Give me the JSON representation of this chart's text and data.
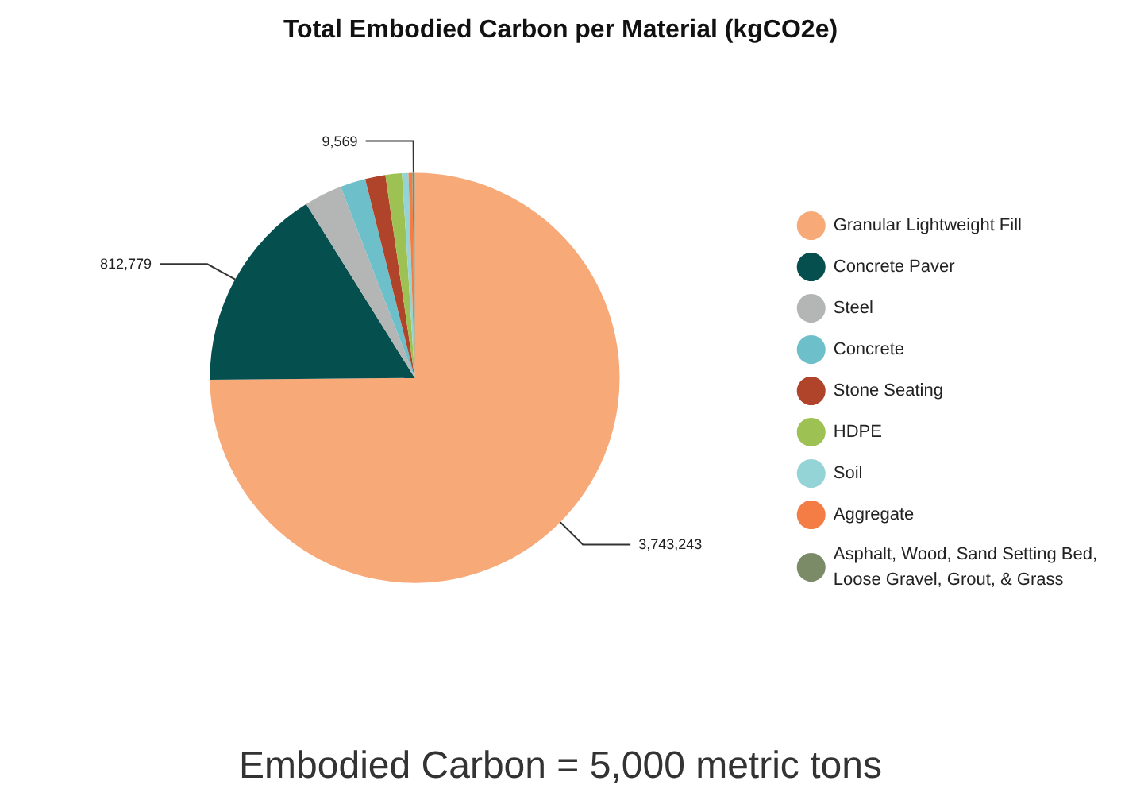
{
  "chart_data": {
    "type": "pie",
    "title": "Total Embodied Carbon per Material (kgCO2e)",
    "categories": [
      "Granular Lightweight Fill",
      "Concrete Paver",
      "Steel",
      "Concrete",
      "Stone Seating",
      "HDPE",
      "Soil",
      "Aggregate",
      "Asphalt, Wood, Sand Setting Bed,\nLoose Gravel, Grout, & Grass"
    ],
    "values": [
      3743243,
      812779,
      150000,
      100000,
      80000,
      65000,
      25000,
      15000,
      9569
    ],
    "colors": [
      "#f7a978",
      "#064f4f",
      "#b4b5b5",
      "#6dbfca",
      "#b0442a",
      "#9dc153",
      "#94d3d6",
      "#f47c45",
      "#7b8b68"
    ],
    "value_labels": [
      "3,743,243",
      "812,779",
      null,
      null,
      null,
      null,
      null,
      null,
      "9,569"
    ],
    "legend": "right",
    "annotations": [
      "Embodied Carbon = 5,000 metric tons"
    ]
  }
}
